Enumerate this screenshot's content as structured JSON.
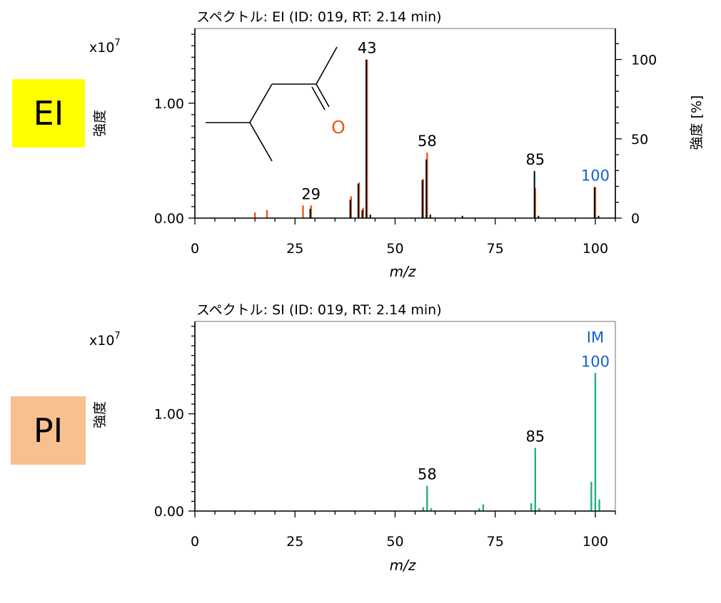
{
  "colors": {
    "ei_badge": "#FFFF00",
    "pi_badge": "#F8C090",
    "reference_bars": "#E85A12",
    "measured_bars": "#000000",
    "si_bars": "#20B080",
    "highlight_label": "#1060D0",
    "frame": "#888888"
  },
  "badges": {
    "ei": "EI",
    "pi": "PI"
  },
  "chart_data": [
    {
      "type": "bar",
      "panel": "ei",
      "title": "スペクトル: EI (ID: 019, RT: 2.14 min)",
      "xlabel": "m/z",
      "ylabel": "強度",
      "ylabel_right": "強度 [%]",
      "scale_label": "x10",
      "scale_exp": "7",
      "xlim": [
        0,
        105
      ],
      "ylim": [
        0,
        1.65
      ],
      "x_ticks": [
        0,
        25,
        50,
        75,
        100
      ],
      "y_ticks": [
        0.0,
        1.0
      ],
      "y_tick_labels": [
        "0.00",
        "1.00"
      ],
      "y_right_ticks": [
        0,
        50,
        100
      ],
      "y_right_max_value": 1.38,
      "structure_atom": "O",
      "series": [
        {
          "name": "reference",
          "points": [
            {
              "x": 15,
              "y": 0.05
            },
            {
              "x": 18,
              "y": 0.07
            },
            {
              "x": 27,
              "y": 0.11
            },
            {
              "x": 29,
              "y": 0.11
            },
            {
              "x": 39,
              "y": 0.19
            },
            {
              "x": 41,
              "y": 0.31
            },
            {
              "x": 42,
              "y": 0.09
            },
            {
              "x": 43,
              "y": 1.38
            },
            {
              "x": 57,
              "y": 0.34
            },
            {
              "x": 58,
              "y": 0.57
            },
            {
              "x": 85,
              "y": 0.26
            },
            {
              "x": 100,
              "y": 0.27
            }
          ]
        },
        {
          "name": "measured",
          "points": [
            {
              "x": 28.8,
              "y": 0.08
            },
            {
              "x": 38.8,
              "y": 0.16
            },
            {
              "x": 40.8,
              "y": 0.3
            },
            {
              "x": 41.8,
              "y": 0.07
            },
            {
              "x": 42.8,
              "y": 1.38
            },
            {
              "x": 43.8,
              "y": 0.03
            },
            {
              "x": 56.8,
              "y": 0.33
            },
            {
              "x": 57.8,
              "y": 0.51
            },
            {
              "x": 58.8,
              "y": 0.03
            },
            {
              "x": 66.8,
              "y": 0.02
            },
            {
              "x": 84.8,
              "y": 0.41
            },
            {
              "x": 85.8,
              "y": 0.02
            },
            {
              "x": 99.8,
              "y": 0.27
            },
            {
              "x": 100.8,
              "y": 0.02
            }
          ]
        }
      ],
      "peak_labels": [
        {
          "text": "43",
          "x": 43,
          "y": 1.38,
          "highlight": false
        },
        {
          "text": "58",
          "x": 58,
          "y": 0.57,
          "highlight": false
        },
        {
          "text": "85",
          "x": 85,
          "y": 0.41,
          "highlight": false
        },
        {
          "text": "29",
          "x": 29,
          "y": 0.11,
          "highlight": false
        },
        {
          "text": "100",
          "x": 100,
          "y": 0.27,
          "highlight": true
        }
      ]
    },
    {
      "type": "bar",
      "panel": "si",
      "title": "スペクトル: SI (ID: 019, RT: 2.14 min)",
      "xlabel": "m/z",
      "ylabel": "強度",
      "scale_label": "x10",
      "scale_exp": "7",
      "xlim": [
        0,
        105
      ],
      "ylim": [
        0,
        1.95
      ],
      "x_ticks": [
        0,
        25,
        50,
        75,
        100
      ],
      "y_ticks": [
        0.0,
        1.0
      ],
      "y_tick_labels": [
        "0.00",
        "1.00"
      ],
      "series": [
        {
          "name": "si",
          "points": [
            {
              "x": 57,
              "y": 0.04
            },
            {
              "x": 58,
              "y": 0.26
            },
            {
              "x": 59,
              "y": 0.03
            },
            {
              "x": 71,
              "y": 0.03
            },
            {
              "x": 72,
              "y": 0.07
            },
            {
              "x": 84,
              "y": 0.08
            },
            {
              "x": 85,
              "y": 0.65
            },
            {
              "x": 86,
              "y": 0.03
            },
            {
              "x": 99,
              "y": 0.3
            },
            {
              "x": 100,
              "y": 1.42
            },
            {
              "x": 101,
              "y": 0.12
            }
          ]
        }
      ],
      "peak_labels": [
        {
          "text": "58",
          "x": 58,
          "y": 0.26,
          "highlight": false
        },
        {
          "text": "85",
          "x": 85,
          "y": 0.65,
          "highlight": false
        },
        {
          "text": "100",
          "x": 100,
          "y": 1.42,
          "highlight": true,
          "prefix": "IM"
        }
      ]
    }
  ]
}
